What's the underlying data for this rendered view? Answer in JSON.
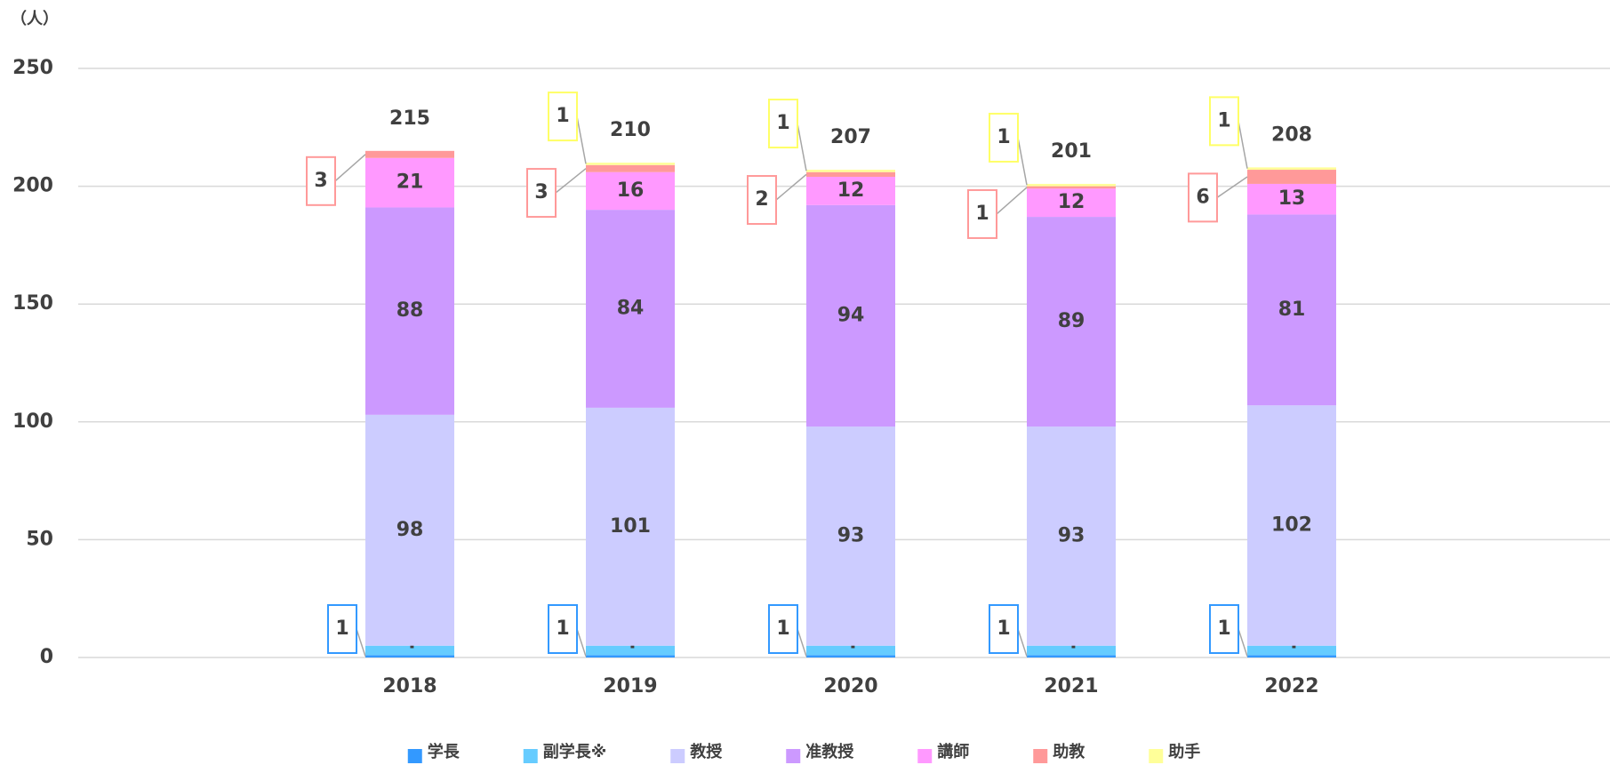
{
  "chart_data": {
    "type": "bar",
    "stacked": true,
    "y_unit": "（人）",
    "categories": [
      "2018",
      "2019",
      "2020",
      "2021",
      "2022"
    ],
    "series": [
      {
        "name": "学長",
        "color": "#3399ff",
        "values": [
          1,
          1,
          1,
          1,
          1
        ],
        "label": "callout"
      },
      {
        "name": "副学長※",
        "color": "#66ccff",
        "values": [
          4,
          4,
          4,
          4,
          4
        ],
        "label": "inside"
      },
      {
        "name": "教授",
        "color": "#ccccff",
        "values": [
          98,
          101,
          93,
          93,
          102
        ],
        "label": "inside"
      },
      {
        "name": "准教授",
        "color": "#cc99ff",
        "values": [
          88,
          84,
          94,
          89,
          81
        ],
        "label": "inside"
      },
      {
        "name": "講師",
        "color": "#ff99ff",
        "values": [
          21,
          16,
          12,
          12,
          13
        ],
        "label": "inside"
      },
      {
        "name": "助教",
        "color": "#ff9999",
        "values": [
          3,
          3,
          2,
          1,
          6
        ],
        "label": "callout"
      },
      {
        "name": "助手",
        "color": "#ffff99",
        "values": [
          0,
          1,
          1,
          1,
          1
        ],
        "label": "callout"
      }
    ],
    "totals": [
      215,
      210,
      207,
      201,
      208
    ],
    "ylim": [
      0,
      250
    ],
    "yticks": [
      0,
      50,
      100,
      150,
      200,
      250
    ],
    "grid": true,
    "legend": "bottom"
  }
}
